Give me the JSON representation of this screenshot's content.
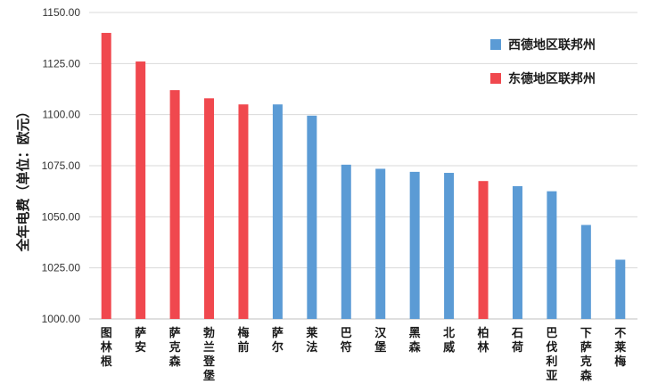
{
  "chart_data": {
    "type": "bar",
    "ylabel": "全年电费（单位：欧元）",
    "ylim": [
      1000,
      1150
    ],
    "yticks": [
      "1000.00",
      "1025.00",
      "1050.00",
      "1075.00",
      "1100.00",
      "1125.00",
      "1150.00"
    ],
    "grid": true,
    "legend_position": "top-right",
    "legend": [
      {
        "name": "西德地区联邦州",
        "color": "#5b9bd5"
      },
      {
        "name": "东德地区联邦州",
        "color": "#f0484e"
      }
    ],
    "categories": [
      "图林根",
      "萨安",
      "萨克森",
      "勃兰登堡",
      "梅前",
      "萨尔",
      "莱法",
      "巴符",
      "汉堡",
      "黑森",
      "北威",
      "柏林",
      "石荷",
      "巴伐利亚",
      "下萨克森",
      "不莱梅"
    ],
    "values": [
      1140,
      1126,
      1112,
      1108,
      1105,
      1105,
      1099.5,
      1075.5,
      1073.5,
      1072,
      1071.5,
      1067.5,
      1065,
      1062.5,
      1046,
      1029
    ],
    "group": [
      "东德地区联邦州",
      "东德地区联邦州",
      "东德地区联邦州",
      "东德地区联邦州",
      "东德地区联邦州",
      "西德地区联邦州",
      "西德地区联邦州",
      "西德地区联邦州",
      "西德地区联邦州",
      "西德地区联邦州",
      "西德地区联邦州",
      "东德地区联邦州",
      "西德地区联邦州",
      "西德地区联邦州",
      "西德地区联邦州",
      "西德地区联邦州"
    ]
  }
}
